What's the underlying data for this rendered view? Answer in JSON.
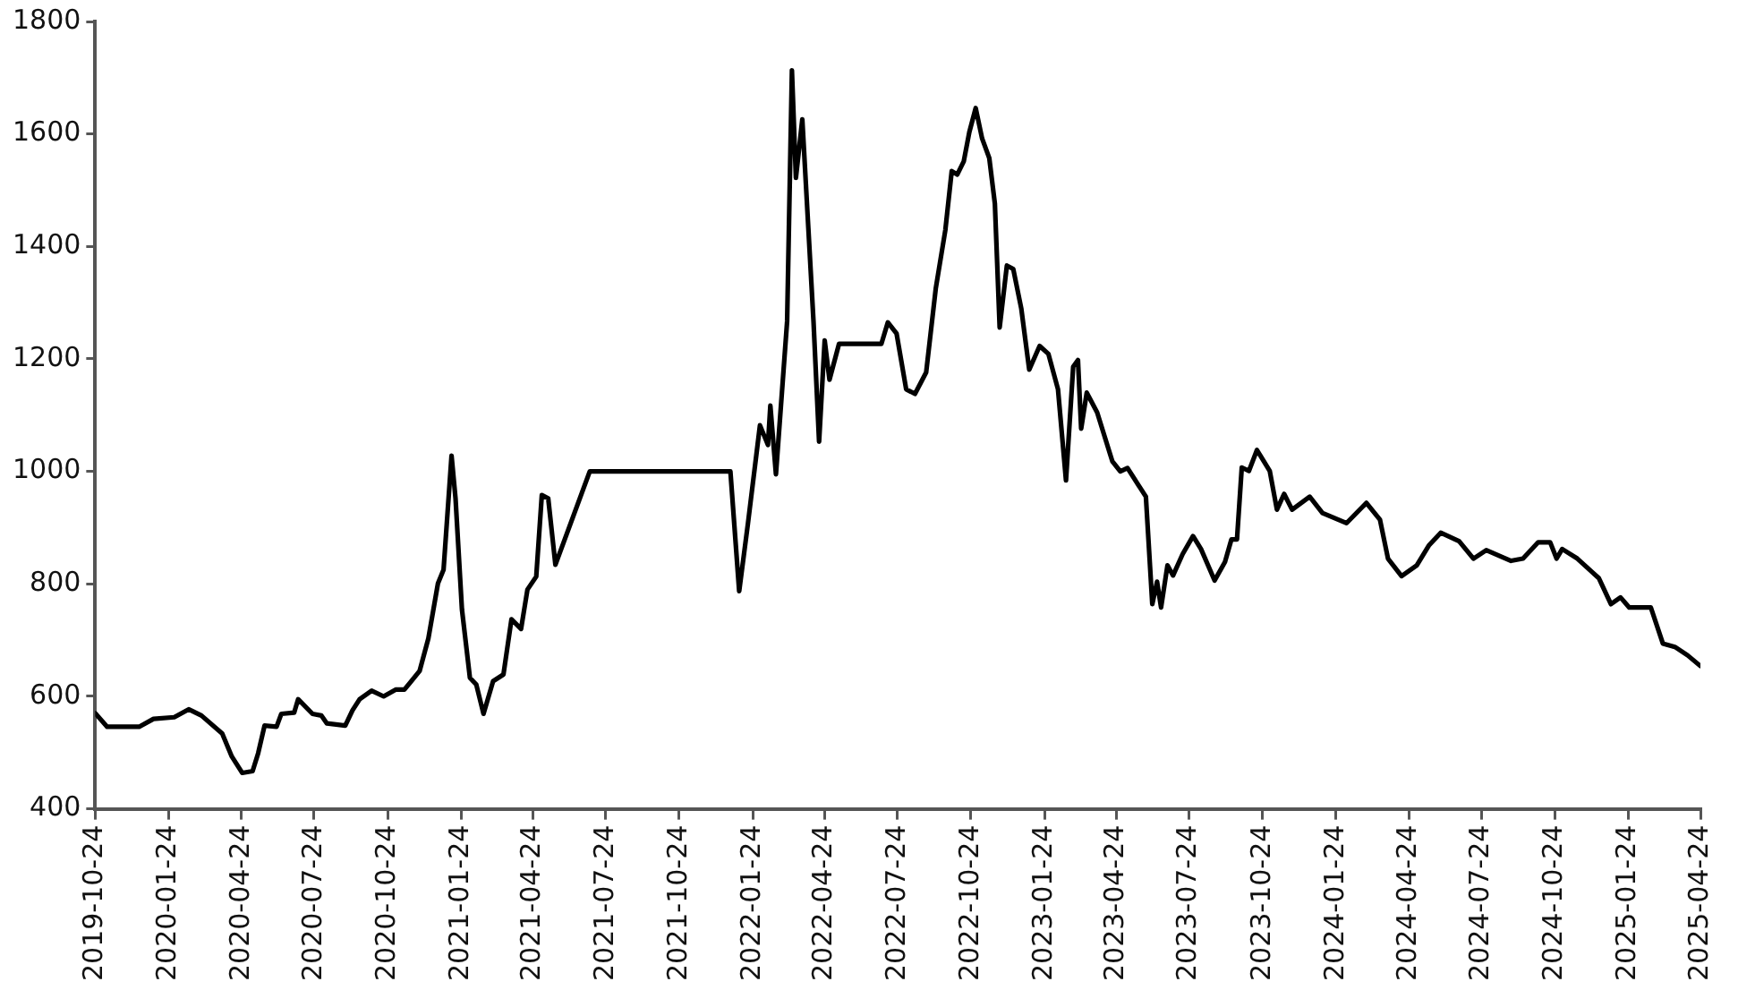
{
  "chart_data": {
    "type": "line",
    "x": [
      "2019-10-24",
      "2019-11-08",
      "2019-12-18",
      "2020-01-05",
      "2020-01-31",
      "2020-02-18",
      "2020-03-05",
      "2020-03-31",
      "2020-04-12",
      "2020-04-25",
      "2020-05-08",
      "2020-05-15",
      "2020-05-23",
      "2020-06-07",
      "2020-06-13",
      "2020-06-29",
      "2020-07-04",
      "2020-07-22",
      "2020-08-02",
      "2020-08-09",
      "2020-09-01",
      "2020-09-10",
      "2020-09-19",
      "2020-10-04",
      "2020-10-19",
      "2020-11-03",
      "2020-11-14",
      "2020-12-03",
      "2020-12-14",
      "2020-12-26",
      "2021-01-02",
      "2021-01-12",
      "2021-01-17",
      "2021-01-25",
      "2021-02-04",
      "2021-02-12",
      "2021-02-21",
      "2021-03-05",
      "2021-03-18",
      "2021-03-28",
      "2021-04-09",
      "2021-04-17",
      "2021-04-28",
      "2021-05-05",
      "2021-05-13",
      "2021-05-22",
      "2021-07-04",
      "2021-12-27",
      "2022-01-07",
      "2022-01-18",
      "2022-02-02",
      "2022-02-12",
      "2022-02-15",
      "2022-02-22",
      "2022-03-08",
      "2022-03-14",
      "2022-03-19",
      "2022-03-27",
      "2022-04-10",
      "2022-04-17",
      "2022-04-24",
      "2022-04-30",
      "2022-05-12",
      "2022-07-04",
      "2022-07-12",
      "2022-07-23",
      "2022-08-04",
      "2022-08-15",
      "2022-08-29",
      "2022-09-10",
      "2022-09-22",
      "2022-09-30",
      "2022-10-07",
      "2022-10-15",
      "2022-10-22",
      "2022-10-30",
      "2022-11-07",
      "2022-11-16",
      "2022-11-23",
      "2022-11-29",
      "2022-12-08",
      "2022-12-16",
      "2022-12-26",
      "2023-01-05",
      "2023-01-18",
      "2023-01-29",
      "2023-02-10",
      "2023-02-20",
      "2023-03-01",
      "2023-03-07",
      "2023-03-11",
      "2023-03-18",
      "2023-03-31",
      "2023-04-19",
      "2023-04-29",
      "2023-05-08",
      "2023-05-31",
      "2023-06-08",
      "2023-06-14",
      "2023-06-19",
      "2023-06-27",
      "2023-07-04",
      "2023-07-16",
      "2023-07-29",
      "2023-08-08",
      "2023-08-25",
      "2023-09-07",
      "2023-09-15",
      "2023-09-22",
      "2023-09-28",
      "2023-10-07",
      "2023-10-17",
      "2023-11-02",
      "2023-11-11",
      "2023-11-20",
      "2023-11-30",
      "2023-12-22",
      "2024-01-07",
      "2024-02-06",
      "2024-03-02",
      "2024-03-19",
      "2024-03-29",
      "2024-04-15",
      "2024-05-04",
      "2024-05-19",
      "2024-06-03",
      "2024-06-26",
      "2024-07-14",
      "2024-07-30",
      "2024-08-30",
      "2024-09-14",
      "2024-10-03",
      "2024-10-18",
      "2024-10-26",
      "2024-11-02",
      "2024-11-21",
      "2024-12-18",
      "2025-01-02",
      "2025-01-14",
      "2025-01-25",
      "2025-02-21",
      "2025-03-08",
      "2025-03-23",
      "2025-04-08",
      "2025-04-24"
    ],
    "series": [
      {
        "color": "#000000",
        "values": [
          570,
          546,
          546,
          560,
          563,
          577,
          566,
          534,
          493,
          464,
          467,
          499,
          548,
          546,
          569,
          571,
          595,
          569,
          566,
          552,
          548,
          575,
          595,
          610,
          600,
          612,
          612,
          645,
          703,
          801,
          825,
          1028,
          952,
          755,
          633,
          621,
          569,
          627,
          639,
          737,
          720,
          790,
          813,
          958,
          952,
          834,
          1000,
          1000,
          787,
          908,
          1082,
          1047,
          1117,
          995,
          1267,
          1713,
          1522,
          1626,
          1267,
          1053,
          1233,
          1163,
          1227,
          1227,
          1265,
          1245,
          1146,
          1138,
          1176,
          1325,
          1429,
          1534,
          1528,
          1551,
          1603,
          1646,
          1592,
          1557,
          1476,
          1256,
          1366,
          1360,
          1290,
          1181,
          1223,
          1209,
          1146,
          984,
          1186,
          1198,
          1076,
          1140,
          1105,
          1018,
          1000,
          1006,
          955,
          764,
          804,
          758,
          833,
          815,
          853,
          885,
          862,
          806,
          839,
          879,
          879,
          1007,
          1001,
          1038,
          1001,
          932,
          960,
          932,
          955,
          926,
          908,
          944,
          914,
          845,
          814,
          833,
          868,
          891,
          876,
          845,
          860,
          841,
          845,
          874,
          874,
          845,
          862,
          845,
          810,
          764,
          776,
          758,
          758,
          694,
          688,
          673,
          654
        ]
      }
    ],
    "xlim": [
      "2019-10-24",
      "2025-04-24"
    ],
    "xticks": [
      "2019-10-24",
      "2020-01-24",
      "2020-04-24",
      "2020-07-24",
      "2020-10-24",
      "2021-01-24",
      "2021-04-24",
      "2021-07-24",
      "2021-10-24",
      "2022-01-24",
      "2022-04-24",
      "2022-07-24",
      "2022-10-24",
      "2023-01-24",
      "2023-04-24",
      "2023-07-24",
      "2023-10-24",
      "2024-01-24",
      "2024-04-24",
      "2024-07-24",
      "2024-10-24",
      "2025-01-24",
      "2025-04-24"
    ],
    "ylim": [
      400,
      1800
    ],
    "yticks": [
      400,
      600,
      800,
      1000,
      1200,
      1400,
      1600,
      1800
    ],
    "grid": false,
    "legend": false,
    "marker": "none",
    "line_style": "solid"
  }
}
